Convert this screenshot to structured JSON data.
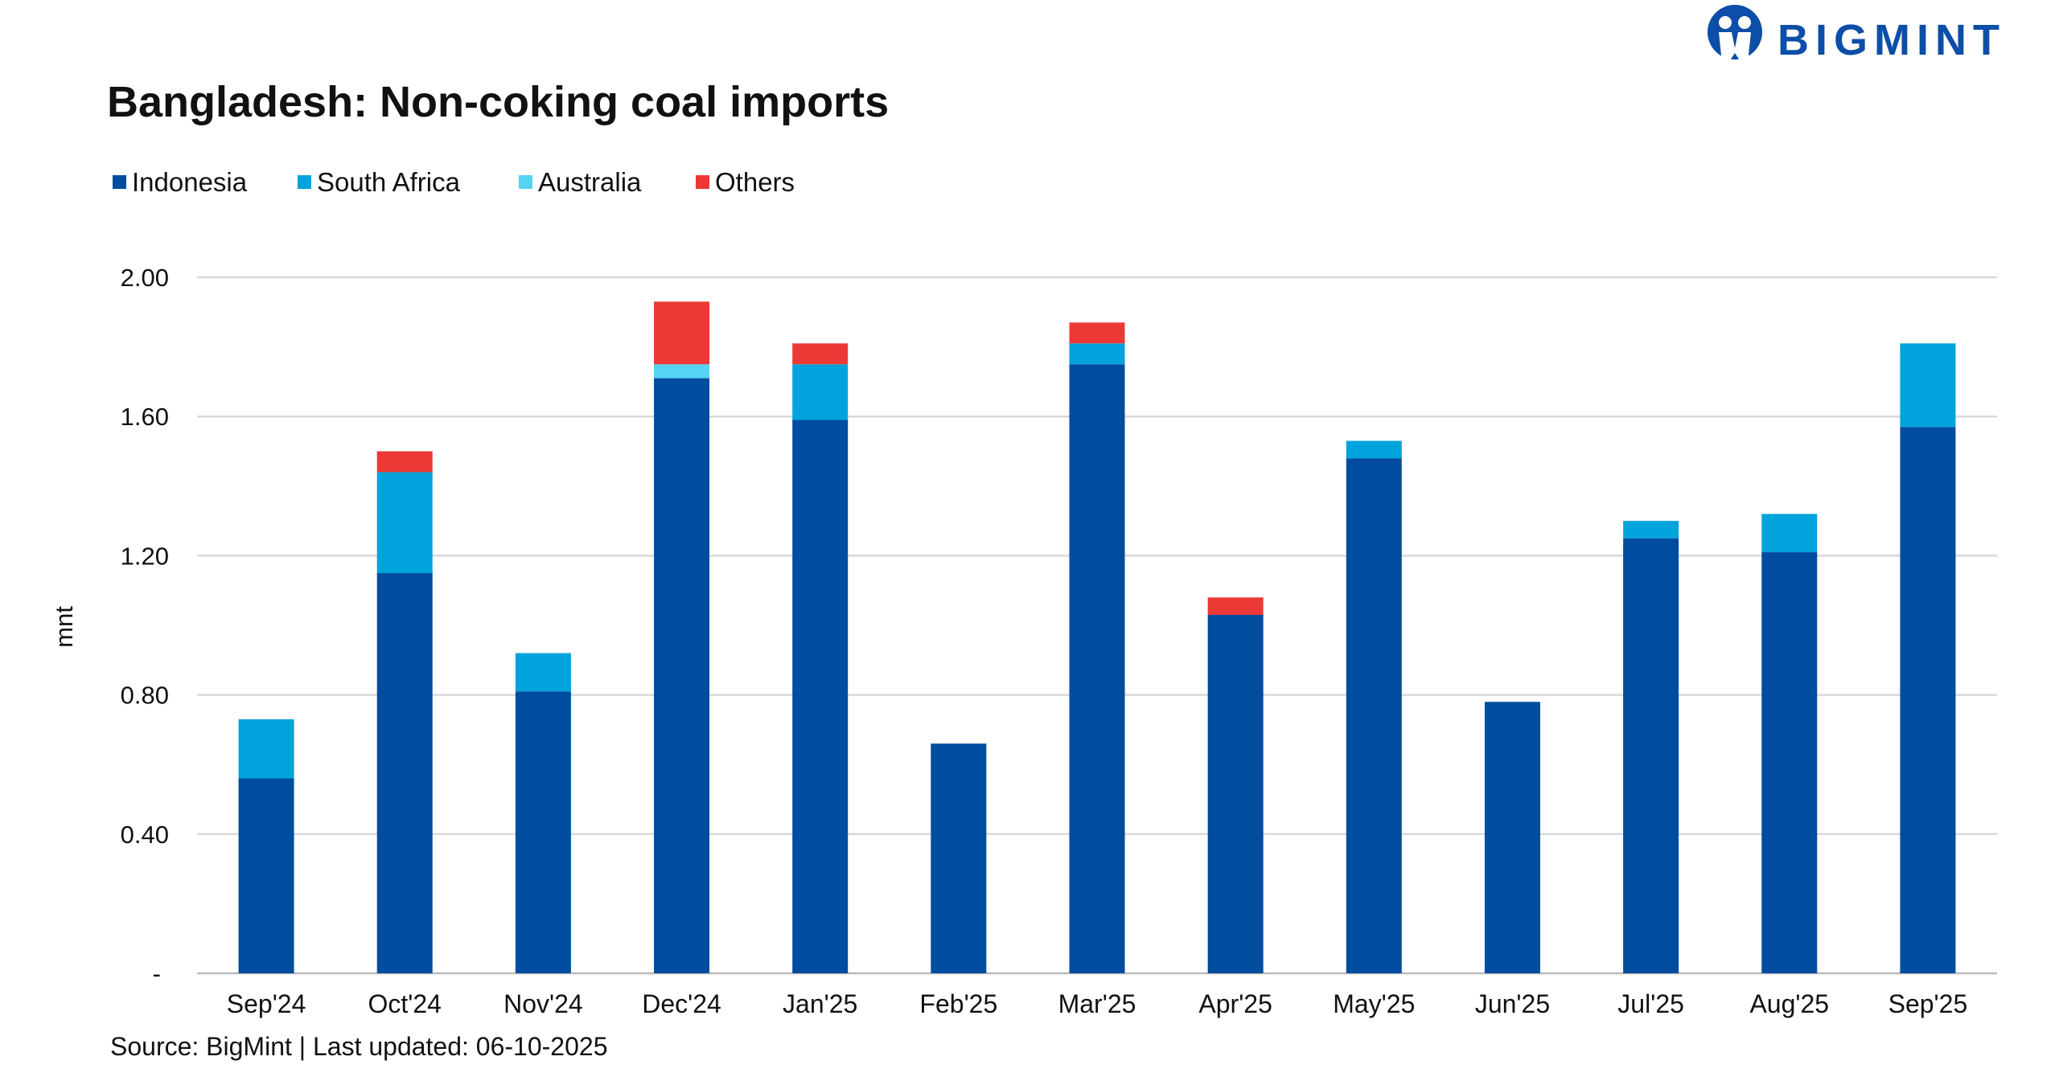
{
  "logo": {
    "text": "BIGMINT",
    "color": "#0c4ea8"
  },
  "chart_data": {
    "type": "bar",
    "stacked": true,
    "title": "Bangladesh: Non-coking coal imports",
    "xlabel": "",
    "ylabel": "mnt",
    "ylim": [
      0,
      2.0
    ],
    "yticks": [
      0,
      0.4,
      0.8,
      1.2,
      1.6,
      2.0
    ],
    "ytick_labels": [
      "-",
      "0.40",
      "0.80",
      "1.20",
      "1.60",
      "2.00"
    ],
    "grid": true,
    "legend_position": "top-left",
    "categories": [
      "Sep'24",
      "Oct'24",
      "Nov'24",
      "Dec'24",
      "Jan'25",
      "Feb'25",
      "Mar'25",
      "Apr'25",
      "May'25",
      "Jun'25",
      "Jul'25",
      "Aug'25",
      "Sep'25"
    ],
    "series": [
      {
        "name": "Indonesia",
        "color": "#004c9f",
        "values": [
          0.56,
          1.15,
          0.81,
          1.71,
          1.59,
          0.66,
          1.75,
          1.03,
          1.48,
          0.78,
          1.25,
          1.21,
          1.57
        ]
      },
      {
        "name": "South Africa",
        "color": "#00a3dc",
        "values": [
          0.17,
          0.29,
          0.11,
          0,
          0.16,
          0,
          0.06,
          0,
          0.05,
          0,
          0.05,
          0.11,
          0.24
        ]
      },
      {
        "name": "Australia",
        "color": "#55d3f2",
        "values": [
          0,
          0,
          0,
          0.04,
          0,
          0,
          0,
          0,
          0,
          0,
          0,
          0,
          0
        ]
      },
      {
        "name": "Others",
        "color": "#ec3935",
        "values": [
          0,
          0.06,
          0,
          0.18,
          0.06,
          0,
          0.06,
          0.05,
          0,
          0,
          0,
          0,
          0
        ]
      }
    ],
    "source": "Source: BigMint | Last updated: 06-10-2025"
  }
}
